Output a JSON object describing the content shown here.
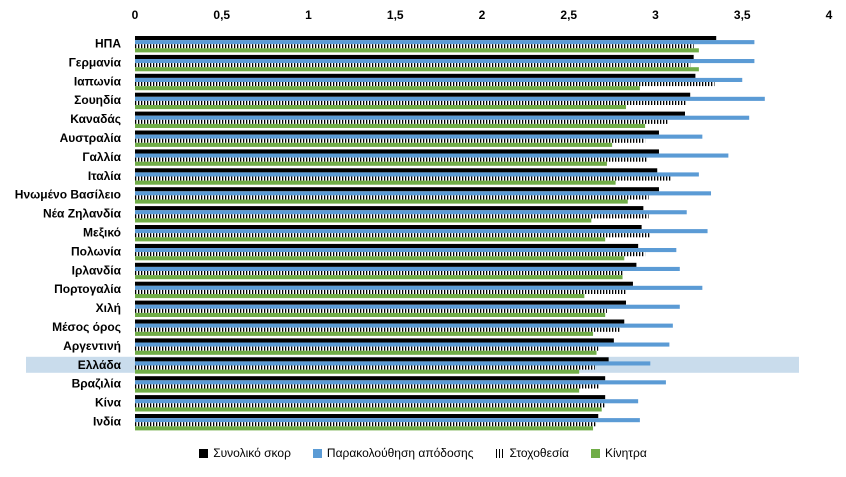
{
  "chart_data": {
    "type": "bar",
    "orientation": "horizontal",
    "categories": [
      "ΗΠΑ",
      "Γερμανία",
      "Ιαπωνία",
      "Σουηδία",
      "Καναδάς",
      "Αυστραλία",
      "Γαλλία",
      "Ιταλία",
      "Ηνωμένο Βασίλειο",
      "Νέα Ζηλανδία",
      "Μεξικό",
      "Πολωνία",
      "Ιρλανδία",
      "Πορτογαλία",
      "Χιλή",
      "Μέσος όρος",
      "Αργεντινή",
      "Ελλάδα",
      "Βραζιλία",
      "Κίνα",
      "Ινδία"
    ],
    "highlight_category": "Ελλάδα",
    "highlight_color": "#c9dcec",
    "xlim": [
      0,
      4
    ],
    "xticks": [
      "0",
      "0,5",
      "1",
      "1,5",
      "2",
      "2,5",
      "3",
      "3,5",
      "4"
    ],
    "xtick_values": [
      0,
      0.5,
      1,
      1.5,
      2,
      2.5,
      3,
      3.5,
      4
    ],
    "axis_position": "top",
    "grid": false,
    "legend_position": "bottom",
    "series": [
      {
        "name": "Συνολικό  σκορ",
        "color": "#000000",
        "pattern": "solid",
        "values": [
          3.35,
          3.22,
          3.23,
          3.2,
          3.17,
          3.02,
          3.02,
          3.01,
          3.02,
          2.93,
          2.92,
          2.9,
          2.89,
          2.87,
          2.83,
          2.82,
          2.76,
          2.73,
          2.71,
          2.71,
          2.67
        ]
      },
      {
        "name": "Παρακολούθηση απόδοσης",
        "color": "#5b9bd5",
        "pattern": "solid",
        "values": [
          3.57,
          3.57,
          3.5,
          3.63,
          3.54,
          3.27,
          3.42,
          3.25,
          3.32,
          3.18,
          3.3,
          3.12,
          3.14,
          3.27,
          3.14,
          3.1,
          3.08,
          2.97,
          3.06,
          2.9,
          2.91
        ]
      },
      {
        "name": "Στοχοθεσία",
        "color": "#000000",
        "pattern": "striped",
        "values": [
          3.22,
          3.2,
          3.34,
          3.18,
          3.07,
          2.94,
          2.95,
          3.09,
          2.96,
          2.96,
          2.97,
          2.94,
          2.81,
          2.83,
          2.72,
          2.8,
          2.67,
          2.65,
          2.68,
          2.71,
          2.66
        ]
      },
      {
        "name": "Κίνητρα",
        "color": "#70ad47",
        "pattern": "solid",
        "values": [
          3.25,
          3.25,
          2.91,
          2.83,
          2.94,
          2.75,
          2.72,
          2.77,
          2.84,
          2.63,
          2.71,
          2.82,
          2.81,
          2.59,
          2.71,
          2.64,
          2.66,
          2.56,
          2.56,
          2.69,
          2.64
        ]
      }
    ]
  }
}
